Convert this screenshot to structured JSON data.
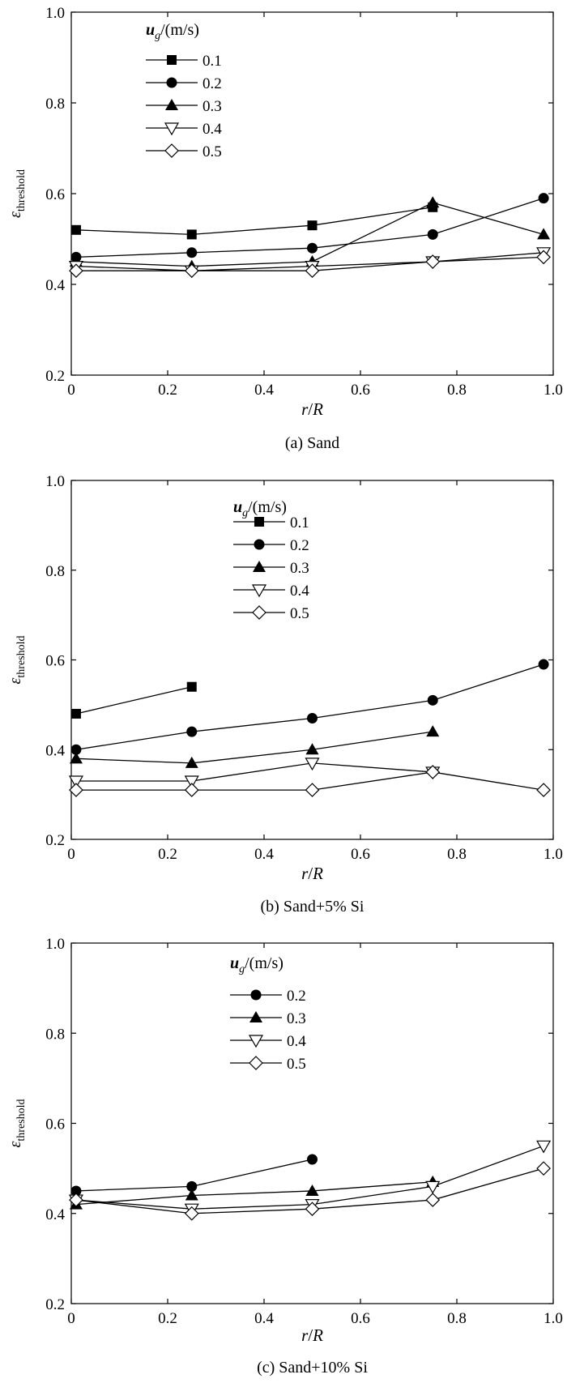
{
  "chart_data": [
    {
      "type": "line",
      "caption": "(a) Sand",
      "xlabel_var": "r",
      "xlabel_sep": "/",
      "xlabel_ref": "R",
      "ylabel_sym": "ε",
      "ylabel_sub": "threshold",
      "xlim": [
        0,
        1.0
      ],
      "ylim": [
        0.2,
        1.0
      ],
      "xticks": [
        "0",
        "0.2",
        "0.4",
        "0.6",
        "0.8",
        "1.0"
      ],
      "yticks": [
        "0.2",
        "0.4",
        "0.6",
        "0.8",
        "1.0"
      ],
      "legend_title_var": "u",
      "legend_title_sub": "g",
      "legend_title_unit": "/(m/s)",
      "series": [
        {
          "name": "0.1",
          "marker": "square",
          "points": [
            [
              0.01,
              0.52
            ],
            [
              0.25,
              0.51
            ],
            [
              0.5,
              0.53
            ],
            [
              0.75,
              0.57
            ]
          ]
        },
        {
          "name": "0.2",
          "marker": "circle",
          "points": [
            [
              0.01,
              0.46
            ],
            [
              0.25,
              0.47
            ],
            [
              0.5,
              0.48
            ],
            [
              0.75,
              0.51
            ],
            [
              0.98,
              0.59
            ]
          ]
        },
        {
          "name": "0.3",
          "marker": "triangle-up",
          "points": [
            [
              0.01,
              0.45
            ],
            [
              0.25,
              0.44
            ],
            [
              0.5,
              0.45
            ],
            [
              0.75,
              0.58
            ],
            [
              0.98,
              0.51
            ]
          ]
        },
        {
          "name": "0.4",
          "marker": "triangle-down-open",
          "points": [
            [
              0.01,
              0.44
            ],
            [
              0.25,
              0.43
            ],
            [
              0.5,
              0.44
            ],
            [
              0.75,
              0.45
            ],
            [
              0.98,
              0.47
            ]
          ]
        },
        {
          "name": "0.5",
          "marker": "diamond-open",
          "points": [
            [
              0.01,
              0.43
            ],
            [
              0.25,
              0.43
            ],
            [
              0.5,
              0.43
            ],
            [
              0.75,
              0.45
            ],
            [
              0.98,
              0.46
            ]
          ]
        }
      ]
    },
    {
      "type": "line",
      "caption": "(b) Sand+5% Si",
      "xlabel_var": "r",
      "xlabel_sep": "/",
      "xlabel_ref": "R",
      "ylabel_sym": "ε",
      "ylabel_sub": "threshold",
      "xlim": [
        0,
        1.0
      ],
      "ylim": [
        0.2,
        1.0
      ],
      "xticks": [
        "0",
        "0.2",
        "0.4",
        "0.6",
        "0.8",
        "1.0"
      ],
      "yticks": [
        "0.2",
        "0.4",
        "0.6",
        "0.8",
        "1.0"
      ],
      "legend_title_var": "u",
      "legend_title_sub": "g",
      "legend_title_unit": "/(m/s)",
      "series": [
        {
          "name": "0.1",
          "marker": "square",
          "points": [
            [
              0.01,
              0.48
            ],
            [
              0.25,
              0.54
            ]
          ]
        },
        {
          "name": "0.2",
          "marker": "circle",
          "points": [
            [
              0.01,
              0.4
            ],
            [
              0.25,
              0.44
            ],
            [
              0.5,
              0.47
            ],
            [
              0.75,
              0.51
            ],
            [
              0.98,
              0.59
            ]
          ]
        },
        {
          "name": "0.3",
          "marker": "triangle-up",
          "points": [
            [
              0.01,
              0.38
            ],
            [
              0.25,
              0.37
            ],
            [
              0.5,
              0.4
            ],
            [
              0.75,
              0.44
            ]
          ]
        },
        {
          "name": "0.4",
          "marker": "triangle-down-open",
          "points": [
            [
              0.01,
              0.33
            ],
            [
              0.25,
              0.33
            ],
            [
              0.5,
              0.37
            ],
            [
              0.75,
              0.35
            ]
          ]
        },
        {
          "name": "0.5",
          "marker": "diamond-open",
          "points": [
            [
              0.01,
              0.31
            ],
            [
              0.25,
              0.31
            ],
            [
              0.5,
              0.31
            ],
            [
              0.75,
              0.35
            ],
            [
              0.98,
              0.31
            ]
          ]
        }
      ]
    },
    {
      "type": "line",
      "caption": "(c) Sand+10% Si",
      "xlabel_var": "r",
      "xlabel_sep": "/",
      "xlabel_ref": "R",
      "ylabel_sym": "ε",
      "ylabel_sub": "threshold",
      "xlim": [
        0,
        1.0
      ],
      "ylim": [
        0.2,
        1.0
      ],
      "xticks": [
        "0",
        "0.2",
        "0.4",
        "0.6",
        "0.8",
        "1.0"
      ],
      "yticks": [
        "0.2",
        "0.4",
        "0.6",
        "0.8",
        "1.0"
      ],
      "legend_title_var": "u",
      "legend_title_sub": "g",
      "legend_title_unit": "/(m/s)",
      "series": [
        {
          "name": "0.2",
          "marker": "circle",
          "points": [
            [
              0.01,
              0.45
            ],
            [
              0.25,
              0.46
            ],
            [
              0.5,
              0.52
            ]
          ]
        },
        {
          "name": "0.3",
          "marker": "triangle-up",
          "points": [
            [
              0.01,
              0.42
            ],
            [
              0.25,
              0.44
            ],
            [
              0.5,
              0.45
            ],
            [
              0.75,
              0.47
            ]
          ]
        },
        {
          "name": "0.4",
          "marker": "triangle-down-open",
          "points": [
            [
              0.01,
              0.43
            ],
            [
              0.25,
              0.41
            ],
            [
              0.5,
              0.42
            ],
            [
              0.75,
              0.46
            ],
            [
              0.98,
              0.55
            ]
          ]
        },
        {
          "name": "0.5",
          "marker": "diamond-open",
          "points": [
            [
              0.01,
              0.43
            ],
            [
              0.25,
              0.4
            ],
            [
              0.5,
              0.41
            ],
            [
              0.75,
              0.43
            ],
            [
              0.98,
              0.5
            ]
          ]
        }
      ]
    }
  ]
}
